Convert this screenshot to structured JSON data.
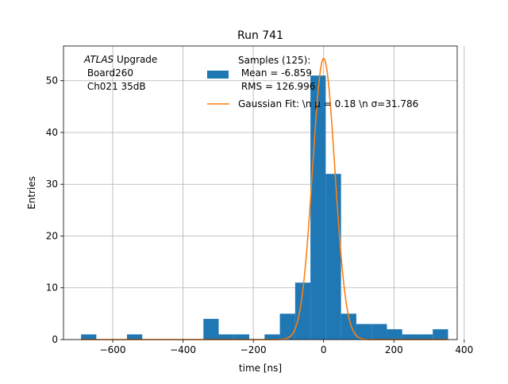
{
  "chart_data": {
    "type": "bar",
    "title": "Run 741",
    "xlabel": "time [ns]",
    "ylabel": "Entries",
    "xlim": [
      -740,
      380
    ],
    "ylim": [
      0,
      56.7
    ],
    "grid": true,
    "xticks": [
      -600,
      -400,
      -200,
      0,
      200,
      400
    ],
    "yticks": [
      0,
      10,
      20,
      30,
      40,
      50
    ],
    "xtick_labels": [
      "−600",
      "−400",
      "−200",
      "0",
      "200",
      "400"
    ],
    "ytick_labels": [
      "0",
      "10",
      "20",
      "30",
      "40",
      "50"
    ],
    "annotation": {
      "italic": "ATLAS",
      "rest": " Upgrade",
      "line2": " Board260",
      "line3": " Ch021 35dB"
    },
    "histogram": {
      "name_lines": [
        "Samples (125):",
        " Mean = -6.859",
        " RMS = 126.996"
      ],
      "color": "#1f77b4",
      "bin_width": 43.5,
      "bins": [
        {
          "x0": -690.0,
          "count": 1
        },
        {
          "x0": -646.5,
          "count": 0
        },
        {
          "x0": -603.0,
          "count": 0
        },
        {
          "x0": -559.5,
          "count": 1
        },
        {
          "x0": -516.0,
          "count": 0
        },
        {
          "x0": -472.5,
          "count": 0
        },
        {
          "x0": -429.0,
          "count": 0
        },
        {
          "x0": -385.5,
          "count": 0
        },
        {
          "x0": -342.0,
          "count": 4
        },
        {
          "x0": -298.5,
          "count": 1
        },
        {
          "x0": -255.0,
          "count": 1
        },
        {
          "x0": -211.5,
          "count": 0
        },
        {
          "x0": -168.0,
          "count": 1
        },
        {
          "x0": -124.5,
          "count": 5
        },
        {
          "x0": -81.0,
          "count": 11
        },
        {
          "x0": -37.5,
          "count": 51
        },
        {
          "x0": 6.0,
          "count": 32
        },
        {
          "x0": 49.5,
          "count": 5
        },
        {
          "x0": 93.0,
          "count": 3
        },
        {
          "x0": 136.5,
          "count": 3
        },
        {
          "x0": 180.0,
          "count": 2
        },
        {
          "x0": 223.5,
          "count": 1
        },
        {
          "x0": 267.0,
          "count": 1
        },
        {
          "x0": 310.5,
          "count": 2
        }
      ]
    },
    "fit": {
      "name": "Gaussian Fit: \\n μ = 0.18 \\n σ=31.786",
      "color": "#ff7f0e",
      "mu": 0.18,
      "sigma": 31.786,
      "amplitude": 54.3,
      "x_range": [
        -690,
        354
      ]
    }
  }
}
